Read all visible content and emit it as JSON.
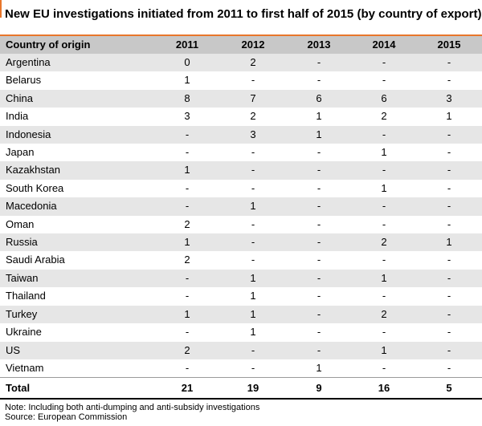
{
  "title": "New EU investigations initiated from 2011 to first half of 2015 (by country of export)",
  "colors": {
    "accent": "#e8762b",
    "header_bg": "#c8c8c8",
    "stripe": "#e6e6e6"
  },
  "chart_data": {
    "type": "table",
    "columns": [
      "Country of origin",
      "2011",
      "2012",
      "2013",
      "2014",
      "2015"
    ],
    "rows": [
      [
        "Argentina",
        "0",
        "2",
        "-",
        "-",
        "-"
      ],
      [
        "Belarus",
        "1",
        "-",
        "-",
        "-",
        "-"
      ],
      [
        "China",
        "8",
        "7",
        "6",
        "6",
        "3"
      ],
      [
        "India",
        "3",
        "2",
        "1",
        "2",
        "1"
      ],
      [
        "Indonesia",
        "-",
        "3",
        "1",
        "-",
        "-"
      ],
      [
        "Japan",
        "-",
        "-",
        "-",
        "1",
        "-"
      ],
      [
        "Kazakhstan",
        "1",
        "-",
        "-",
        "-",
        "-"
      ],
      [
        "South Korea",
        "-",
        "-",
        "-",
        "1",
        "-"
      ],
      [
        "Macedonia",
        "-",
        "1",
        "-",
        "-",
        "-"
      ],
      [
        "Oman",
        "2",
        "-",
        "-",
        "-",
        "-"
      ],
      [
        "Russia",
        "1",
        "-",
        "-",
        "2",
        "1"
      ],
      [
        "Saudi Arabia",
        "2",
        "-",
        "-",
        "-",
        "-"
      ],
      [
        "Taiwan",
        "-",
        "1",
        "-",
        "1",
        "-"
      ],
      [
        "Thailand",
        "-",
        "1",
        "-",
        "-",
        "-"
      ],
      [
        "Turkey",
        "1",
        "1",
        "-",
        "2",
        "-"
      ],
      [
        "Ukraine",
        "-",
        "1",
        "-",
        "-",
        "-"
      ],
      [
        "US",
        "2",
        "-",
        "-",
        "1",
        "-"
      ],
      [
        "Vietnam",
        "-",
        "-",
        "1",
        "-",
        "-"
      ]
    ],
    "total": [
      "Total",
      "21",
      "19",
      "9",
      "16",
      "5"
    ]
  },
  "notes": {
    "note": "Note: Including both anti-dumping and anti-subsidy investigations",
    "source": "Source: European Commission"
  }
}
